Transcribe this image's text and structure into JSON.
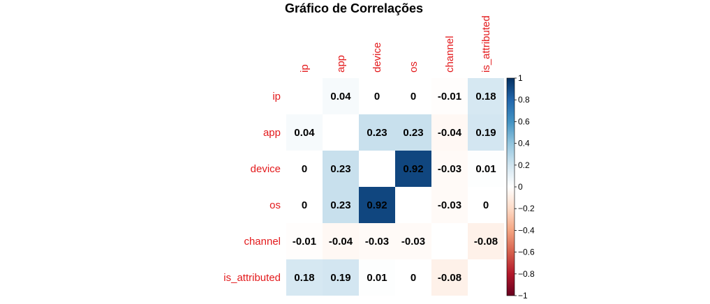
{
  "chart_data": {
    "type": "heatmap",
    "title": "Gráfico de Correlações",
    "variables": [
      "ip",
      "app",
      "device",
      "os",
      "channel",
      "is_attributed"
    ],
    "values": [
      [
        null,
        0.04,
        0,
        0,
        -0.01,
        0.18
      ],
      [
        0.04,
        null,
        0.23,
        0.23,
        -0.04,
        0.19
      ],
      [
        0,
        0.23,
        null,
        0.92,
        -0.03,
        0.01
      ],
      [
        0,
        0.23,
        0.92,
        null,
        -0.03,
        0
      ],
      [
        -0.01,
        -0.04,
        -0.03,
        -0.03,
        null,
        -0.08
      ],
      [
        0.18,
        0.19,
        0.01,
        0,
        -0.08,
        null
      ]
    ],
    "value_labels": [
      [
        "",
        "0.04",
        "0",
        "0",
        "-0.01",
        "0.18"
      ],
      [
        "0.04",
        "",
        "0.23",
        "0.23",
        "-0.04",
        "0.19"
      ],
      [
        "0",
        "0.23",
        "",
        "0.92",
        "-0.03",
        "0.01"
      ],
      [
        "0",
        "0.23",
        "0.92",
        "",
        "-0.03",
        "0"
      ],
      [
        "-0.01",
        "-0.04",
        "-0.03",
        "-0.03",
        "",
        "-0.08"
      ],
      [
        "0.18",
        "0.19",
        "0.01",
        "0",
        "-0.08",
        ""
      ]
    ],
    "colorbar": {
      "range": [
        -1,
        1
      ],
      "ticks": [
        "1",
        "0.8",
        "0.6",
        "0.4",
        "0.2",
        "0",
        "−0.2",
        "−0.4",
        "−0.6",
        "−0.8",
        "−1"
      ],
      "tick_values": [
        1,
        0.8,
        0.6,
        0.4,
        0.2,
        0,
        -0.2,
        -0.4,
        -0.6,
        -0.8,
        -1
      ]
    },
    "label_color": "#e31a1c",
    "colors": {
      "negative_end": "#67001f",
      "neutral": "#ffffff",
      "positive_end": "#053061",
      "gradient": [
        "#67001f",
        "#b2182b",
        "#d6604d",
        "#f4a582",
        "#fddbc7",
        "#ffffff",
        "#d1e5f0",
        "#92c5de",
        "#4393c3",
        "#2166ac",
        "#053061"
      ]
    },
    "diagonal": "blank",
    "legend_position": "right"
  }
}
